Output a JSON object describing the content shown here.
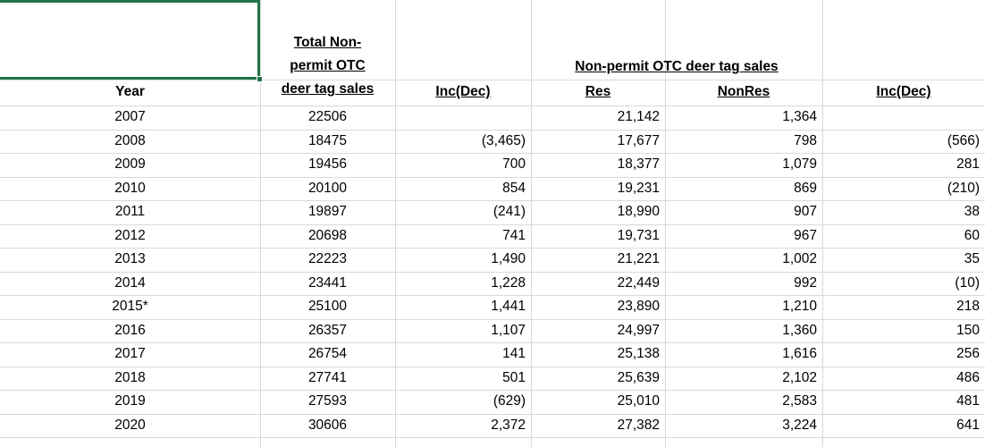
{
  "headers": {
    "year": "Year",
    "total_line1": "Total Non-",
    "total_line2": "permit OTC",
    "total_line3": "deer tag sales",
    "inc_dec_1": "Inc(Dec)",
    "group_title": "Non-permit OTC deer tag sales",
    "res": "Res",
    "nonres": "NonRes",
    "inc_dec_2": "Inc(Dec)"
  },
  "rows": [
    {
      "year": "2007",
      "total": "22506",
      "inc": "",
      "res": "21,142",
      "nonres": "1,364",
      "inc2": ""
    },
    {
      "year": "2008",
      "total": "18475",
      "inc": "(3,465)",
      "res": "17,677",
      "nonres": "798",
      "inc2": "(566)"
    },
    {
      "year": "2009",
      "total": "19456",
      "inc": "700",
      "res": "18,377",
      "nonres": "1,079",
      "inc2": "281"
    },
    {
      "year": "2010",
      "total": "20100",
      "inc": "854",
      "res": "19,231",
      "nonres": "869",
      "inc2": "(210)"
    },
    {
      "year": "2011",
      "total": "19897",
      "inc": "(241)",
      "res": "18,990",
      "nonres": "907",
      "inc2": "38"
    },
    {
      "year": "2012",
      "total": "20698",
      "inc": "741",
      "res": "19,731",
      "nonres": "967",
      "inc2": "60"
    },
    {
      "year": "2013",
      "total": "22223",
      "inc": "1,490",
      "res": "21,221",
      "nonres": "1,002",
      "inc2": "35"
    },
    {
      "year": "2014",
      "total": "23441",
      "inc": "1,228",
      "res": "22,449",
      "nonres": "992",
      "inc2": "(10)"
    },
    {
      "year": "2015*",
      "total": "25100",
      "inc": "1,441",
      "res": "23,890",
      "nonres": "1,210",
      "inc2": "218"
    },
    {
      "year": "2016",
      "total": "26357",
      "inc": "1,107",
      "res": "24,997",
      "nonres": "1,360",
      "inc2": "150"
    },
    {
      "year": "2017",
      "total": "26754",
      "inc": "141",
      "res": "25,138",
      "nonres": "1,616",
      "inc2": "256"
    },
    {
      "year": "2018",
      "total": "27741",
      "inc": "501",
      "res": "25,639",
      "nonres": "2,102",
      "inc2": "486"
    },
    {
      "year": "2019",
      "total": "27593",
      "inc": "(629)",
      "res": "25,010",
      "nonres": "2,583",
      "inc2": "481"
    },
    {
      "year": "2020",
      "total": "30606",
      "inc": "2,372",
      "res": "27,382",
      "nonres": "3,224",
      "inc2": "641"
    }
  ]
}
